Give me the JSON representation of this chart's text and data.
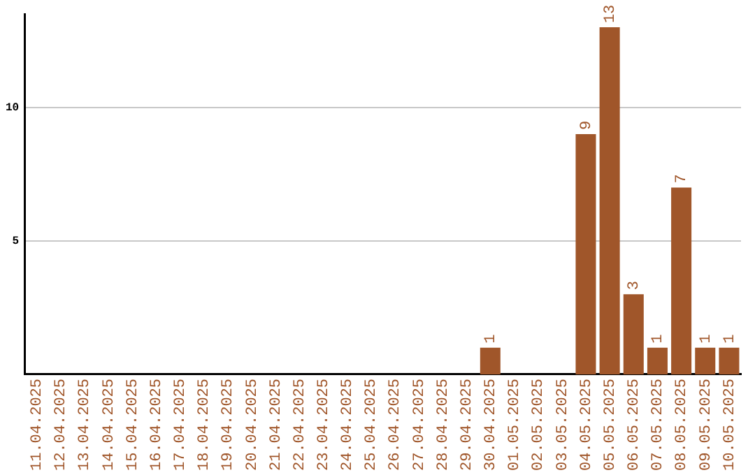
{
  "chart_data": {
    "type": "bar",
    "categories": [
      "11.04.2025",
      "12.04.2025",
      "13.04.2025",
      "14.04.2025",
      "15.04.2025",
      "16.04.2025",
      "17.04.2025",
      "18.04.2025",
      "19.04.2025",
      "20.04.2025",
      "21.04.2025",
      "22.04.2025",
      "23.04.2025",
      "24.04.2025",
      "25.04.2025",
      "26.04.2025",
      "27.04.2025",
      "28.04.2025",
      "29.04.2025",
      "30.04.2025",
      "01.05.2025",
      "02.05.2025",
      "03.05.2025",
      "04.05.2025",
      "05.05.2025",
      "06.05.2025",
      "07.05.2025",
      "08.05.2025",
      "09.05.2025",
      "10.05.2025"
    ],
    "values": [
      0,
      0,
      0,
      0,
      0,
      0,
      0,
      0,
      0,
      0,
      0,
      0,
      0,
      0,
      0,
      0,
      0,
      0,
      0,
      1,
      0,
      0,
      0,
      9,
      13,
      3,
      1,
      7,
      1,
      1
    ],
    "value_labels": [
      null,
      null,
      null,
      null,
      null,
      null,
      null,
      null,
      null,
      null,
      null,
      null,
      null,
      null,
      null,
      null,
      null,
      null,
      null,
      "1",
      null,
      null,
      null,
      "9",
      "13",
      "3",
      "1",
      "7",
      "1",
      "1"
    ],
    "color": "#a0562a",
    "ylim": [
      0,
      13.5
    ],
    "yticks": [
      5,
      10
    ],
    "grid": "y"
  }
}
